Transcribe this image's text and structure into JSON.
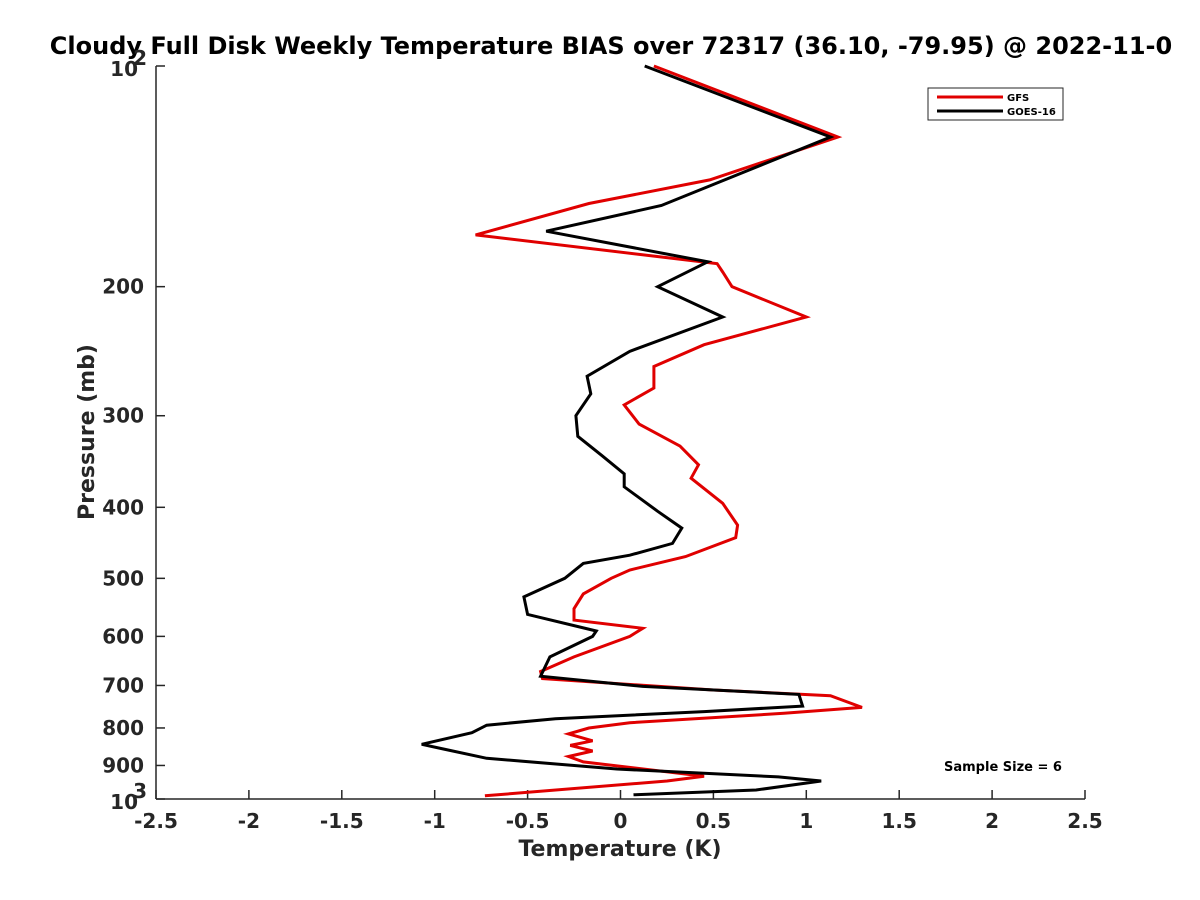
{
  "chart_data": {
    "type": "line",
    "title": "Cloudy Full Disk Weekly Temperature BIAS over 72317 (36.10, -79.95) @ 2022-11-0",
    "xlabel": "Temperature (K)",
    "ylabel": "Pressure (mb)",
    "xlim": [
      -2.5,
      2.5
    ],
    "ylim": [
      100,
      1000
    ],
    "y_scale": "log",
    "y_reversed": true,
    "grid": false,
    "legend_position": "top-right",
    "annotation": "Sample Size = 6",
    "x_ticks": [
      {
        "value": -2.5,
        "label": "-2.5"
      },
      {
        "value": -2,
        "label": "-2"
      },
      {
        "value": -1.5,
        "label": "-1.5"
      },
      {
        "value": -1,
        "label": "-1"
      },
      {
        "value": -0.5,
        "label": "-0.5"
      },
      {
        "value": 0,
        "label": "0"
      },
      {
        "value": 0.5,
        "label": "0.5"
      },
      {
        "value": 1,
        "label": "1"
      },
      {
        "value": 1.5,
        "label": "1.5"
      },
      {
        "value": 2,
        "label": "2"
      },
      {
        "value": 2.5,
        "label": "2.5"
      }
    ],
    "y_ticks": [
      {
        "value": 100,
        "base": "10",
        "sup": "2"
      },
      {
        "value": 200,
        "label": "200"
      },
      {
        "value": 300,
        "label": "300"
      },
      {
        "value": 400,
        "label": "400"
      },
      {
        "value": 500,
        "label": "500"
      },
      {
        "value": 600,
        "label": "600"
      },
      {
        "value": 700,
        "label": "700"
      },
      {
        "value": 800,
        "label": "800"
      },
      {
        "value": 900,
        "label": "900"
      },
      {
        "value": 1000,
        "base": "10",
        "sup": "3"
      }
    ],
    "series": [
      {
        "name": "GFS",
        "color": "#e00000",
        "points": [
          [
            0.18,
            100
          ],
          [
            1.17,
            125
          ],
          [
            0.48,
            143
          ],
          [
            -0.17,
            154
          ],
          [
            -0.78,
            170
          ],
          [
            0.52,
            186
          ],
          [
            0.55,
            191
          ],
          [
            0.6,
            200
          ],
          [
            1.0,
            220
          ],
          [
            0.45,
            240
          ],
          [
            0.18,
            257
          ],
          [
            0.18,
            275
          ],
          [
            0.02,
            290
          ],
          [
            0.1,
            308
          ],
          [
            0.32,
            330
          ],
          [
            0.42,
            350
          ],
          [
            0.38,
            365
          ],
          [
            0.55,
            395
          ],
          [
            0.63,
            423
          ],
          [
            0.62,
            440
          ],
          [
            0.35,
            467
          ],
          [
            0.05,
            487
          ],
          [
            -0.05,
            500
          ],
          [
            -0.2,
            525
          ],
          [
            -0.25,
            550
          ],
          [
            -0.25,
            570
          ],
          [
            0.12,
            585
          ],
          [
            0.05,
            600
          ],
          [
            -0.25,
            640
          ],
          [
            -0.43,
            670
          ],
          [
            -0.42,
            685
          ],
          [
            0.5,
            710
          ],
          [
            1.13,
            723
          ],
          [
            1.3,
            750
          ],
          [
            0.88,
            764
          ],
          [
            0.05,
            787
          ],
          [
            -0.17,
            800
          ],
          [
            -0.28,
            815
          ],
          [
            -0.15,
            833
          ],
          [
            -0.27,
            845
          ],
          [
            -0.15,
            860
          ],
          [
            -0.28,
            875
          ],
          [
            -0.2,
            890
          ],
          [
            0.45,
            931
          ],
          [
            0.25,
            945
          ],
          [
            -0.73,
            990
          ]
        ]
      },
      {
        "name": "GOES-16",
        "color": "#000000",
        "points": [
          [
            0.13,
            100
          ],
          [
            1.13,
            125
          ],
          [
            0.22,
            155
          ],
          [
            -0.4,
            168
          ],
          [
            0.47,
            185
          ],
          [
            0.2,
            200
          ],
          [
            0.55,
            220
          ],
          [
            0.05,
            245
          ],
          [
            -0.18,
            265
          ],
          [
            -0.16,
            280
          ],
          [
            -0.24,
            300
          ],
          [
            -0.23,
            320
          ],
          [
            -0.1,
            340
          ],
          [
            0.02,
            360
          ],
          [
            0.02,
            375
          ],
          [
            0.2,
            405
          ],
          [
            0.33,
            427
          ],
          [
            0.28,
            448
          ],
          [
            0.05,
            465
          ],
          [
            -0.2,
            477
          ],
          [
            -0.3,
            500
          ],
          [
            -0.52,
            530
          ],
          [
            -0.5,
            560
          ],
          [
            -0.13,
            590
          ],
          [
            -0.15,
            600
          ],
          [
            -0.38,
            640
          ],
          [
            -0.43,
            680
          ],
          [
            0.12,
            702
          ],
          [
            0.96,
            720
          ],
          [
            0.98,
            747
          ],
          [
            0.45,
            760
          ],
          [
            -0.35,
            777
          ],
          [
            -0.72,
            793
          ],
          [
            -0.8,
            812
          ],
          [
            -1.07,
            842
          ],
          [
            -0.95,
            855
          ],
          [
            -0.72,
            880
          ],
          [
            -0.02,
            910
          ],
          [
            0.85,
            933
          ],
          [
            1.08,
            945
          ],
          [
            0.73,
            972
          ],
          [
            0.07,
            987
          ]
        ]
      }
    ]
  }
}
